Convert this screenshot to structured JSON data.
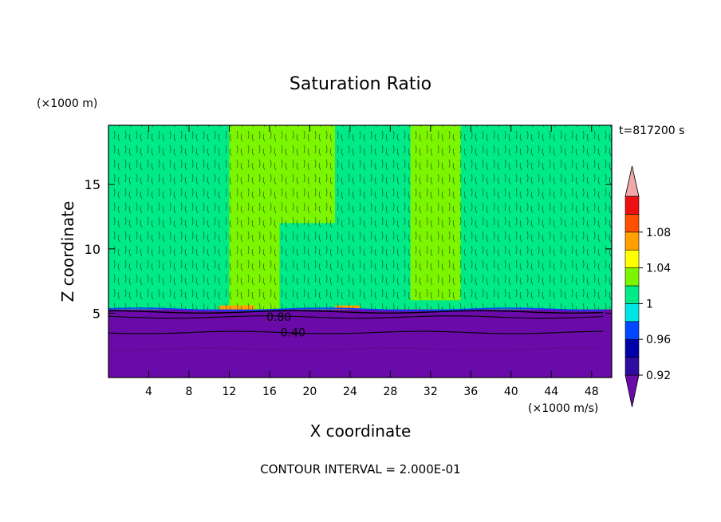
{
  "chart_data": {
    "type": "heatmap",
    "title": "Saturation Ratio",
    "time_label": "t=817200 s",
    "xlabel": "X coordinate",
    "ylabel": "Z coordinate",
    "x_unit": "(×1000 m/s)",
    "y_unit": "(×1000 m)",
    "footer": "CONTOUR INTERVAL = 2.000E-01",
    "xlim": [
      0,
      50
    ],
    "ylim": [
      0,
      19.6
    ],
    "x_ticks": [
      {
        "value": 4,
        "label": "4"
      },
      {
        "value": 8,
        "label": "8"
      },
      {
        "value": 12,
        "label": "12"
      },
      {
        "value": 16,
        "label": "16"
      },
      {
        "value": 20,
        "label": "20"
      },
      {
        "value": 24,
        "label": "24"
      },
      {
        "value": 28,
        "label": "28"
      },
      {
        "value": 32,
        "label": "32"
      },
      {
        "value": 36,
        "label": "36"
      },
      {
        "value": 40,
        "label": "40"
      },
      {
        "value": 44,
        "label": "44"
      },
      {
        "value": 48,
        "label": "48"
      }
    ],
    "y_ticks": [
      {
        "value": 5,
        "label": "5"
      },
      {
        "value": 10,
        "label": "10"
      },
      {
        "value": 15,
        "label": "15"
      }
    ],
    "contour_labels": [
      {
        "x": 15.7,
        "z": 4.7,
        "text": "0.80"
      },
      {
        "x": 17.1,
        "z": 3.5,
        "text": "0.40"
      }
    ],
    "colorbar": {
      "bins": [
        {
          "label": "",
          "color": "#6a0aa8"
        },
        {
          "label": "0.92",
          "color": "#2f0ca0"
        },
        {
          "label": "",
          "color": "#0000a8"
        },
        {
          "label": "0.96",
          "color": "#0048ff"
        },
        {
          "label": "",
          "color": "#00e6e6"
        },
        {
          "label": "1",
          "color": "#00ea87"
        },
        {
          "label": "",
          "color": "#7cf500"
        },
        {
          "label": "1.04",
          "color": "#ffff00"
        },
        {
          "label": "",
          "color": "#ffa000"
        },
        {
          "label": "1.08",
          "color": "#ff5000"
        },
        {
          "label": "",
          "color": "#ee1010"
        },
        {
          "label": "",
          "color": "#f0a8a8"
        }
      ]
    },
    "regions": [
      {
        "name": "boundary-layer",
        "value": 0.4,
        "x0": 0,
        "x1": 50,
        "z0": 0,
        "z1": 5.3
      },
      {
        "name": "upper-background",
        "value": 0.99,
        "x0": 0,
        "x1": 50,
        "z0": 5.3,
        "z1": 19.6
      },
      {
        "name": "moist-column-a",
        "value": 1.01,
        "x0": 12,
        "x1": 17,
        "z0": 5.3,
        "z1": 19.6
      },
      {
        "name": "moist-column-b",
        "value": 1.01,
        "x0": 16,
        "x1": 22.5,
        "z0": 12,
        "z1": 19.6
      },
      {
        "name": "moist-column-c",
        "value": 1.01,
        "x0": 30,
        "x1": 35,
        "z0": 6,
        "z1": 19.6
      },
      {
        "name": "supersat-patch-a",
        "value": 1.05,
        "x0": 11,
        "x1": 14.5,
        "z0": 5.3,
        "z1": 5.6
      },
      {
        "name": "supersat-patch-b",
        "value": 1.05,
        "x0": 22.5,
        "x1": 25,
        "z0": 5.3,
        "z1": 5.6
      }
    ]
  }
}
